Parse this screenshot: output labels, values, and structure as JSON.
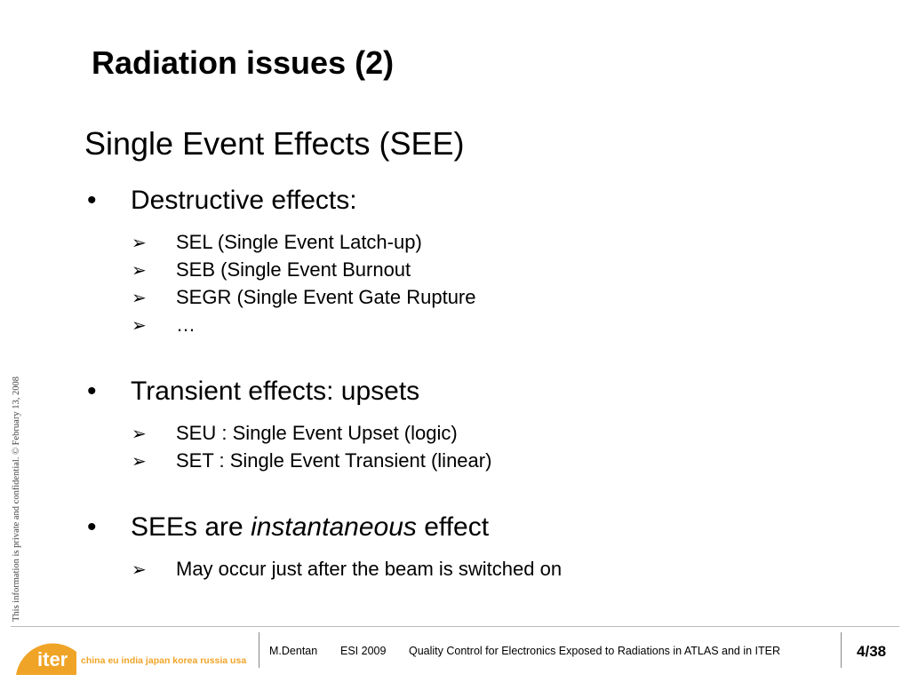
{
  "slide": {
    "title": "Radiation issues (2)",
    "heading": "Single Event Effects (SEE)"
  },
  "bullets": [
    {
      "label": "Destructive effects:",
      "subitems": [
        "SEL (Single Event Latch-up)",
        "SEB (Single Event Burnout",
        "SEGR (Single Event Gate Rupture",
        "…"
      ]
    },
    {
      "label": "Transient effects: upsets",
      "subitems": [
        "SEU : Single Event Upset (logic)",
        "SET : Single Event Transient (linear)"
      ]
    },
    {
      "label_before": "SEEs are ",
      "label_emphasis": "instantaneous",
      "label_after": " effect",
      "subitems": [
        "May occur just after the beam is switched on"
      ]
    }
  ],
  "glyphs": {
    "bullet": "•",
    "arrow": "➢"
  },
  "side_note": "This information is private and confidential.  © February 13, 2008",
  "footer": {
    "logo_text": "iter",
    "tagline": "china eu india japan korea russia usa",
    "author": "M.Dentan",
    "event": "ESI 2009",
    "talk_title": "Quality Control for Electronics Exposed to Radiations in ATLAS and in ITER",
    "page_current": "4",
    "page_separator": "/",
    "page_total": "38"
  },
  "colors": {
    "logo_orange": "#f0a427",
    "text": "#000000"
  }
}
